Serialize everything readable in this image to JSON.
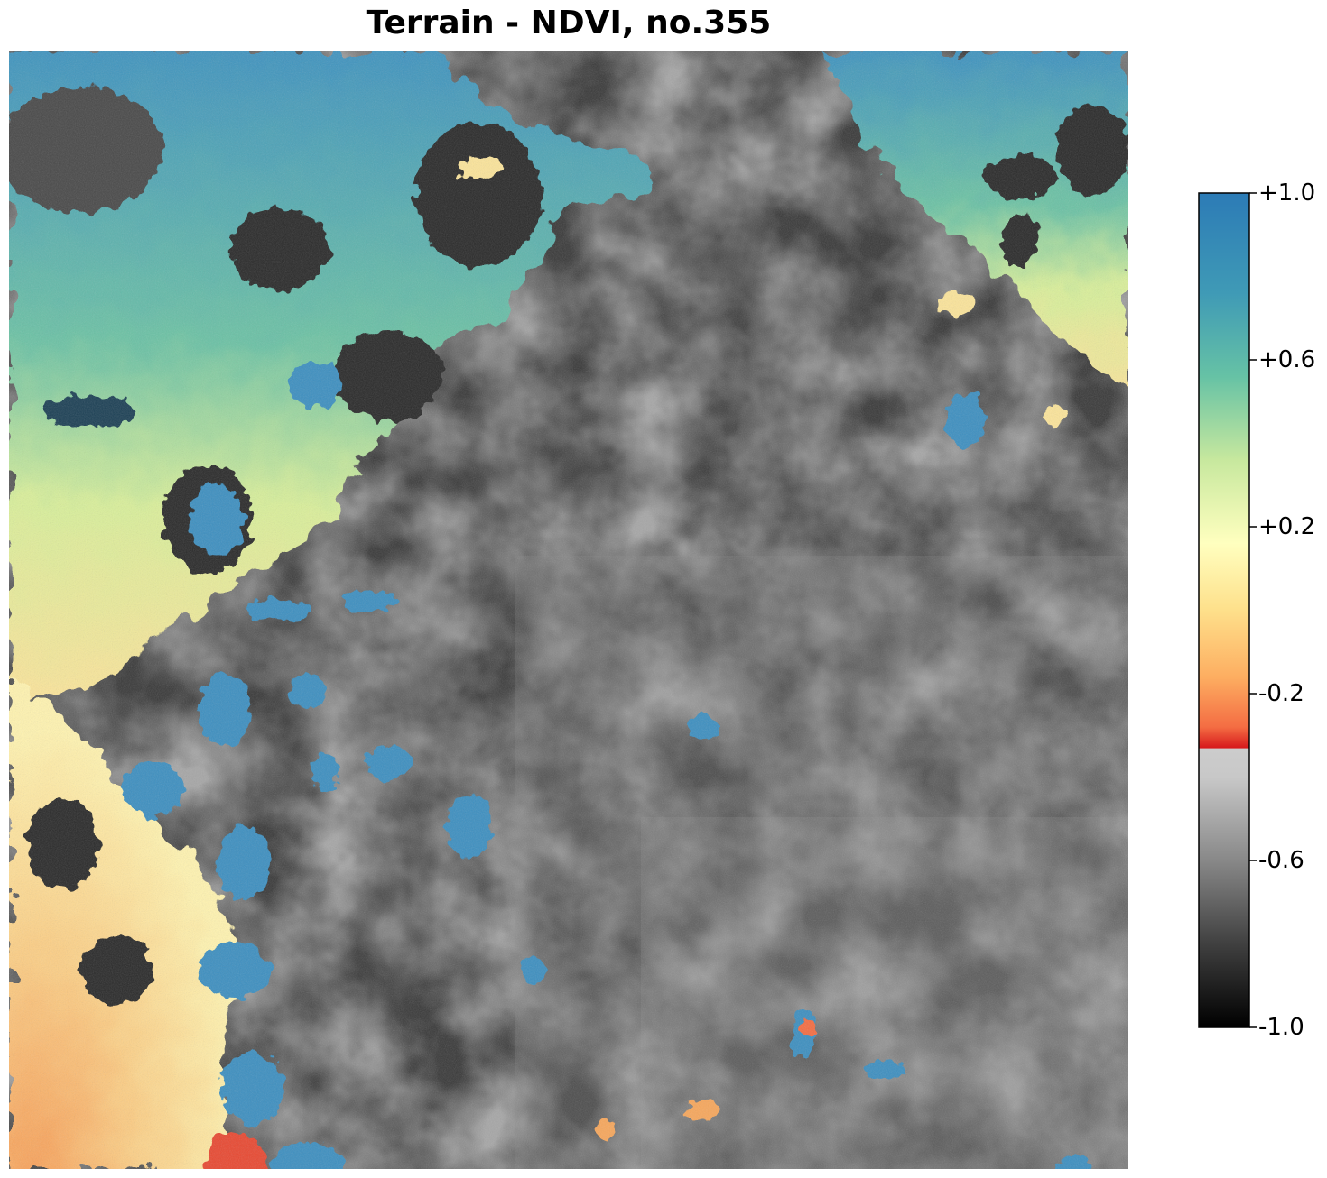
{
  "title": "Terrain - NDVI, no.355",
  "colorbar": {
    "min": -1.0,
    "max": 1.0,
    "ticks": [
      {
        "value": 1.0,
        "label": "+1.0"
      },
      {
        "value": 0.6,
        "label": "+0.6"
      },
      {
        "value": 0.2,
        "label": "+0.2"
      },
      {
        "value": -0.2,
        "label": "-0.2"
      },
      {
        "value": -0.6,
        "label": "-0.6"
      },
      {
        "value": -1.0,
        "label": "-1.0"
      }
    ],
    "colors": {
      "vegetation_high": "#2c7bb6",
      "vegetation_mid": "#66c2a5",
      "vegetation_low": "#e6f598",
      "neutral": "#ffffbf",
      "bare_low": "#fdae61",
      "bare_mid": "#f46d43",
      "threshold_red": "#d7191c",
      "gray_light": "#cccccc",
      "gray_mid": "#808080",
      "black": "#000000"
    }
  }
}
